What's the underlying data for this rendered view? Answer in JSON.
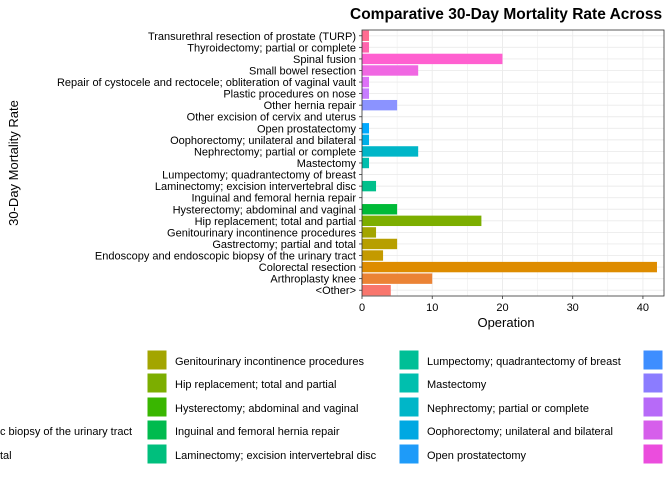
{
  "chart_data": {
    "type": "bar",
    "orientation": "horizontal",
    "title": "Comparative 30-Day Mortality Rate Across",
    "xlabel": "Operation",
    "ylabel": "30-Day Mortality Rate",
    "xlim": [
      0,
      43
    ],
    "x_ticks": [
      0,
      10,
      20,
      30,
      40
    ],
    "grid": true,
    "legend_position": "bottom",
    "categories": [
      "<Other>",
      "Arthroplasty knee",
      "Colorectal resection",
      "Endoscopy and endoscopic biopsy of the urinary tract",
      "Gastrectomy; partial and total",
      "Genitourinary incontinence procedures",
      "Hip replacement; total and partial",
      "Hysterectomy; abdominal and vaginal",
      "Inguinal and femoral hernia repair",
      "Laminectomy; excision intervertebral disc",
      "Lumpectomy; quadrantectomy of breast",
      "Mastectomy",
      "Nephrectomy; partial or complete",
      "Oophorectomy; unilateral and bilateral",
      "Open prostatectomy",
      "Other excision of cervix and uterus",
      "Other hernia repair",
      "Plastic procedures on nose",
      "Repair of cystocele and rectocele; obliteration of vaginal vault",
      "Small bowel resection",
      "Spinal fusion",
      "Thyroidectomy; partial or complete",
      "Transurethral resection of prostate (TURP)"
    ],
    "values": [
      4.1,
      10,
      42,
      3,
      5,
      2,
      17,
      5,
      0,
      2,
      0,
      1,
      8,
      1,
      1,
      0,
      5,
      1,
      1,
      8,
      20,
      1,
      1
    ],
    "colors": [
      "#F8766D",
      "#EB8335",
      "#DE8C00",
      "#C49A00",
      "#B79F00",
      "#A3A500",
      "#7CAE00",
      "#00BA38",
      "#00BF44",
      "#00C08B",
      "#00BFA0",
      "#00BFAE",
      "#00B6C8",
      "#00B0E8",
      "#00A9FF",
      "#619CFF",
      "#8B93FF",
      "#C77CFF",
      "#DE71F8",
      "#F067E2",
      "#FF60D0",
      "#FF65AE",
      "#FF6C91"
    ],
    "legend_entries": [
      {
        "label": "Genitourinary incontinence procedures",
        "color": "#A3A500"
      },
      {
        "label": "Hip replacement; total and partial",
        "color": "#7CAE00"
      },
      {
        "label": "Hysterectomy; abdominal and vaginal",
        "color": "#39B600"
      },
      {
        "label": "Inguinal and femoral hernia repair",
        "color": "#00BB4E"
      },
      {
        "label": "Laminectomy; excision intervertebral disc",
        "color": "#00BF7D"
      },
      {
        "label": "Lumpectomy; quadrantectomy of breast",
        "color": "#00BF96"
      },
      {
        "label": "Mastectomy",
        "color": "#00BFAE"
      },
      {
        "label": "Nephrectomy; partial or complete",
        "color": "#00B6C8"
      },
      {
        "label": "Oophorectomy; unilateral and bilateral",
        "color": "#00A8E2"
      },
      {
        "label": "Open prostatectomy",
        "color": "#1E9BF9"
      },
      {
        "label": "c biopsy of the urinary tract",
        "color": ""
      },
      {
        "label": "tal",
        "color": ""
      }
    ],
    "legend_extra_colors": [
      "#3E8EFF",
      "#8B7CFF",
      "#B76AF8",
      "#D65FEB",
      "#EB4DDD"
    ]
  }
}
